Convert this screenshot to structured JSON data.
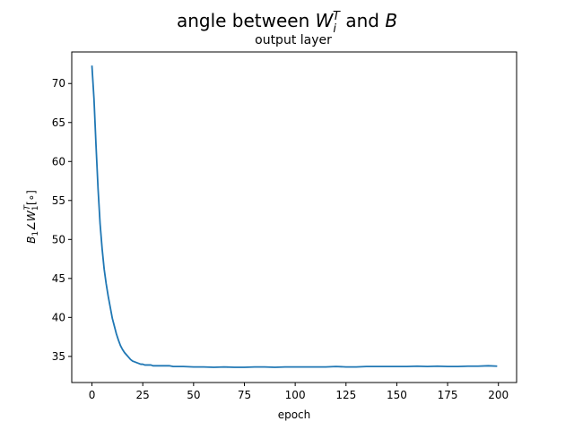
{
  "chart_data": {
    "type": "line",
    "title_parts": [
      "angle between ",
      "W",
      "i",
      "T",
      " and ",
      "B"
    ],
    "subtitle": "output layer",
    "xlabel": "epoch",
    "ylabel_parts": [
      "B",
      "1",
      "∠W",
      "1",
      "T",
      "[∘]"
    ],
    "xlim": [
      -9.95,
      208.95
    ],
    "ylim": [
      31.65,
      74.05
    ],
    "xticks": [
      0,
      25,
      50,
      75,
      100,
      125,
      150,
      175,
      200
    ],
    "yticks": [
      35,
      40,
      45,
      50,
      55,
      60,
      65,
      70
    ],
    "grid": false,
    "line_color": "#1f77b4",
    "series": [
      {
        "x": [
          0,
          1,
          2,
          3,
          4,
          5,
          6,
          7,
          8,
          9,
          10,
          11,
          12,
          13,
          14,
          15,
          16,
          17,
          18,
          19,
          20,
          21,
          22,
          23,
          24,
          25,
          26,
          27,
          28,
          29,
          30,
          32,
          35,
          38,
          40,
          45,
          50,
          55,
          60,
          65,
          70,
          75,
          80,
          85,
          90,
          95,
          100,
          105,
          110,
          115,
          120,
          125,
          130,
          135,
          140,
          145,
          150,
          155,
          160,
          165,
          170,
          175,
          180,
          185,
          190,
          195,
          199
        ],
        "y": [
          72.2,
          68.0,
          62.0,
          56.5,
          52.0,
          48.8,
          46.2,
          44.3,
          42.7,
          41.3,
          39.9,
          38.9,
          37.9,
          37.1,
          36.4,
          35.9,
          35.5,
          35.2,
          34.9,
          34.6,
          34.4,
          34.3,
          34.2,
          34.1,
          34.0,
          34.0,
          33.9,
          33.9,
          33.9,
          33.9,
          33.8,
          33.8,
          33.8,
          33.8,
          33.7,
          33.7,
          33.65,
          33.65,
          33.6,
          33.65,
          33.6,
          33.6,
          33.65,
          33.65,
          33.6,
          33.65,
          33.65,
          33.65,
          33.65,
          33.65,
          33.7,
          33.65,
          33.65,
          33.7,
          33.7,
          33.7,
          33.7,
          33.7,
          33.75,
          33.7,
          33.75,
          33.7,
          33.7,
          33.75,
          33.75,
          33.8,
          33.75
        ]
      }
    ]
  }
}
